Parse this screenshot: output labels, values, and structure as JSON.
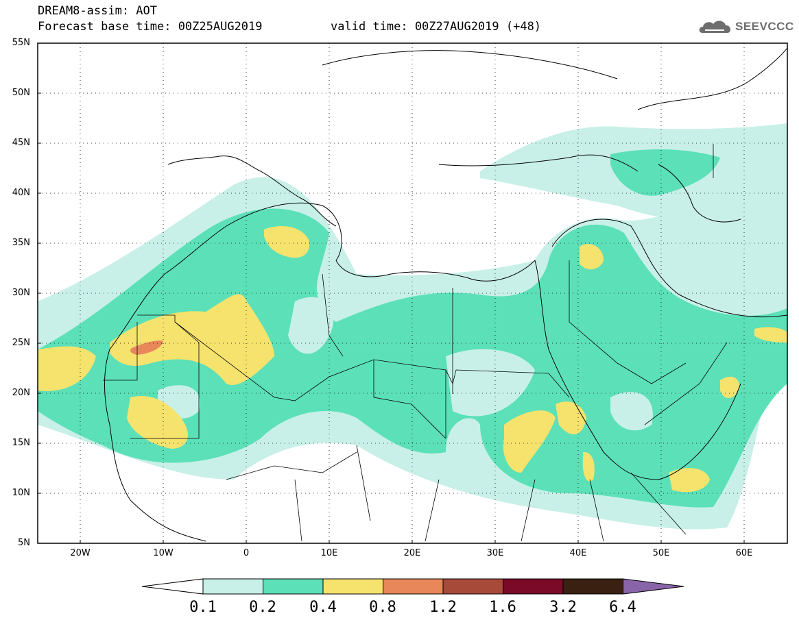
{
  "header": {
    "title": "DREAM8-assim: AOT",
    "base_time": "Forecast base time: 00Z25AUG2019",
    "valid_time": "valid time: 00Z27AUG2019 (+48)",
    "logo_text": "SEEVCCC"
  },
  "map": {
    "lat_labels": [
      "55N",
      "50N",
      "45N",
      "40N",
      "35N",
      "30N",
      "25N",
      "20N",
      "15N",
      "10N",
      "5N"
    ],
    "lon_labels": [
      "20W",
      "10W",
      "0",
      "10E",
      "20E",
      "30E",
      "40E",
      "50E",
      "60E"
    ],
    "extent": {
      "lon": [
        -25,
        65
      ],
      "lat": [
        5,
        55
      ]
    },
    "grid": "dotted"
  },
  "colorbar": {
    "levels": [
      "0.1",
      "0.2",
      "0.4",
      "0.8",
      "1.2",
      "1.6",
      "3.2",
      "6.4"
    ],
    "colors": [
      "#ffffff",
      "#c8f0e8",
      "#5ce0b8",
      "#f5e36e",
      "#e8875a",
      "#a84a3a",
      "#7a0a28",
      "#3a2010",
      "#8a64a8"
    ]
  }
}
